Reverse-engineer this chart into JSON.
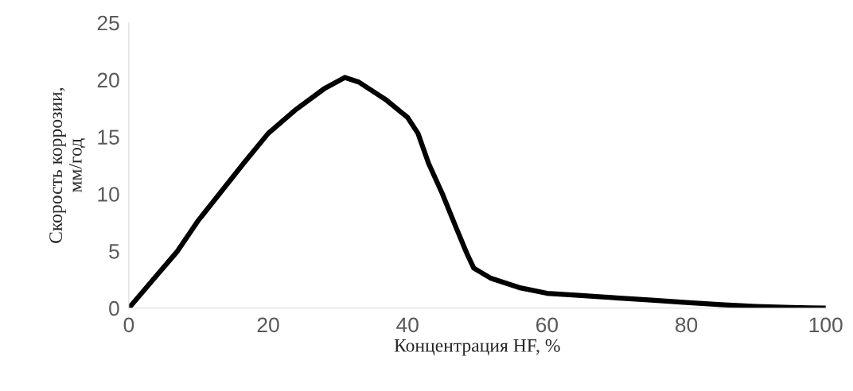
{
  "chart_data": {
    "type": "line",
    "xlabel": "Концентрация HF, %",
    "ylabel": "Скорость коррозии,\nмм/год",
    "x": [
      0,
      3.5,
      7,
      10,
      13,
      16.5,
      20,
      24,
      28,
      31,
      33,
      37,
      40,
      41.5,
      43,
      45,
      47,
      48.5,
      49.5,
      52,
      56,
      60,
      65,
      70,
      75,
      80,
      85,
      90,
      95,
      100
    ],
    "series": [
      {
        "color": "#000000",
        "values": [
          0,
          2.5,
          5,
          7.7,
          10,
          12.7,
          15.3,
          17.4,
          19.2,
          20.2,
          19.8,
          18.2,
          16.7,
          15.3,
          12.7,
          10,
          7,
          4.8,
          3.5,
          2.6,
          1.8,
          1.3,
          1.1,
          0.9,
          0.7,
          0.5,
          0.3,
          0.15,
          0.05,
          0
        ]
      }
    ],
    "xlim": [
      0,
      100
    ],
    "ylim": [
      0,
      25
    ],
    "xticks": [
      0,
      20,
      40,
      60,
      80,
      100
    ],
    "yticks": [
      0,
      5,
      10,
      15,
      20,
      25
    ],
    "marker": "none",
    "line_style": "solid",
    "grid": false,
    "legend": false
  }
}
